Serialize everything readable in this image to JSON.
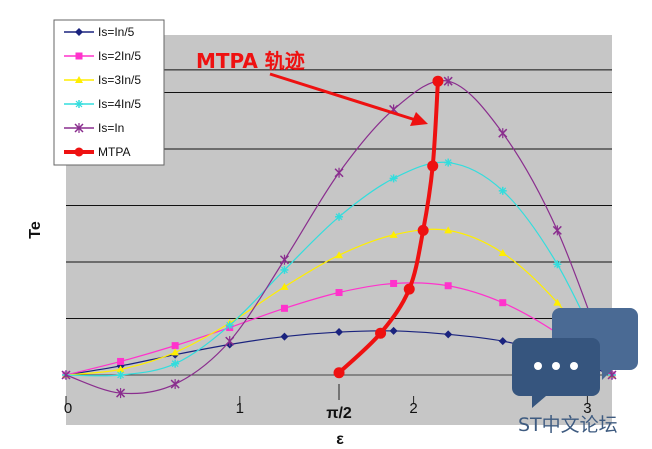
{
  "chart_data": {
    "type": "line",
    "xlabel": "ε",
    "ylabel": "Te",
    "xlim": [
      0,
      3.14159
    ],
    "x_ticks": [
      "0",
      "1",
      "2",
      "3"
    ],
    "x_special_tick": "π/2",
    "gridlines": "horizontal",
    "legend_position": "top-left",
    "annotation": "MTPA 轨迹",
    "series": [
      {
        "name": "Is=In/5",
        "color": "#1a237e",
        "marker": "diamond",
        "x": [
          0,
          0.314,
          0.628,
          0.942,
          1.257,
          1.571,
          1.885,
          2.199,
          2.513,
          2.827,
          3.14159
        ],
        "y": [
          0,
          0.08,
          0.18,
          0.27,
          0.34,
          0.38,
          0.39,
          0.36,
          0.3,
          0.18,
          0
        ]
      },
      {
        "name": "Is=2In/5",
        "color": "#ff33cc",
        "marker": "square",
        "x": [
          0,
          0.314,
          0.628,
          0.942,
          1.257,
          1.571,
          1.885,
          2.199,
          2.513,
          2.827,
          3.14159
        ],
        "y": [
          0,
          0.12,
          0.26,
          0.42,
          0.59,
          0.73,
          0.81,
          0.79,
          0.64,
          0.37,
          0
        ]
      },
      {
        "name": "Is=3In/5",
        "color": "#ffee00",
        "marker": "triangle",
        "x": [
          0,
          0.314,
          0.628,
          0.942,
          1.257,
          1.571,
          1.885,
          2.199,
          2.513,
          2.827,
          3.14159
        ],
        "y": [
          0,
          0.05,
          0.2,
          0.46,
          0.78,
          1.06,
          1.24,
          1.28,
          1.08,
          0.64,
          0
        ]
      },
      {
        "name": "Is=4In/5",
        "color": "#33dddd",
        "marker": "star",
        "x": [
          0,
          0.314,
          0.628,
          0.942,
          1.257,
          1.571,
          1.885,
          2.199,
          2.513,
          2.827,
          3.14159
        ],
        "y": [
          0,
          0.0,
          0.1,
          0.44,
          0.93,
          1.4,
          1.74,
          1.88,
          1.63,
          0.98,
          0
        ]
      },
      {
        "name": "Is=In",
        "color": "#8a2e8e",
        "marker": "x",
        "x": [
          0,
          0.314,
          0.628,
          0.942,
          1.257,
          1.571,
          1.885,
          2.199,
          2.513,
          2.827,
          3.14159
        ],
        "y": [
          0,
          -0.16,
          -0.08,
          0.3,
          1.02,
          1.79,
          2.35,
          2.6,
          2.14,
          1.28,
          0
        ]
      },
      {
        "name": "MTPA",
        "color": "#ee1111",
        "marker": "circle",
        "x": [
          1.571,
          1.81,
          1.975,
          2.055,
          2.11,
          2.14
        ],
        "y": [
          0.02,
          0.37,
          0.76,
          1.28,
          1.85,
          2.6
        ]
      }
    ]
  },
  "watermark": {
    "text": "ST中文论坛"
  }
}
